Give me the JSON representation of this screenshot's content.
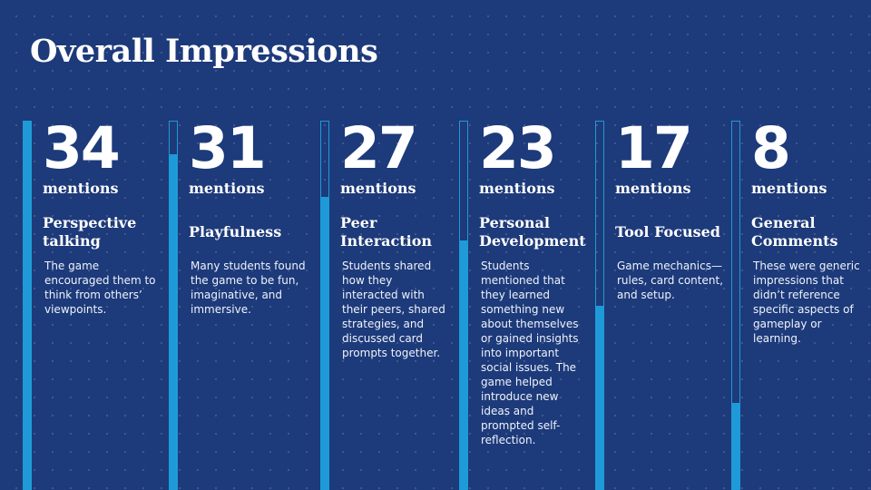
{
  "title": "Overall Impressions",
  "accent_color": "#1f9ad8",
  "background_color": "#1d3a7a",
  "unit_label": "mentions",
  "categories": [
    {
      "count": "34",
      "count_value": 34,
      "label": "Perspective talking",
      "description": "The game encouraged them to think from others’ viewpoints."
    },
    {
      "count": "31",
      "count_value": 31,
      "label": "Playfulness",
      "description": "Many students found the game to be fun, imaginative, and immersive."
    },
    {
      "count": "27",
      "count_value": 27,
      "label": "Peer Interaction",
      "description": "Students shared how they interacted with their peers, shared strategies, and discussed card prompts together."
    },
    {
      "count": "23",
      "count_value": 23,
      "label": "Personal Development",
      "description": "Students mentioned that they learned something new about themselves or gained insights into important social issues. The game helped introduce new ideas and prompted self-reflection."
    },
    {
      "count": "17",
      "count_value": 17,
      "label": "Tool Focused",
      "description": "Game mechanics—rules, card content, and setup."
    },
    {
      "count": "8",
      "count_value": 8,
      "label": "General Comments",
      "description": "These were generic impressions that didn’t reference specific aspects of gameplay or learning."
    }
  ]
}
